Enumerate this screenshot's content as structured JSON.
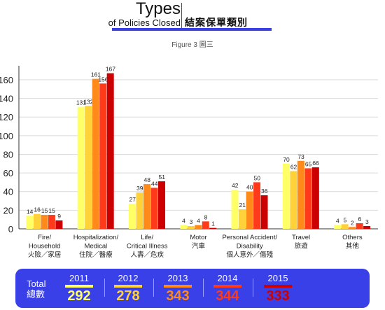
{
  "header": {
    "title_en_main": "Types",
    "title_en_sub": "of Policies Closed",
    "title_zh": "結案保單類別",
    "figure_label": "Figure 3  圖三"
  },
  "chart_data": {
    "type": "bar",
    "categories": [
      [
        "Fire/",
        "Household",
        "火險／家居"
      ],
      [
        "Hospitalization/",
        "Medical",
        "住院／醫療"
      ],
      [
        "Life/",
        "Critical Illness",
        "人壽／危疾"
      ],
      [
        "Motor",
        "汽車"
      ],
      [
        "Personal Accident/",
        "Disability",
        "個人意外／傷殘"
      ],
      [
        "Travel",
        "旅遊"
      ],
      [
        "Others",
        "其他"
      ]
    ],
    "series": [
      {
        "name": "2011",
        "values": [
          14,
          131,
          27,
          4,
          42,
          70,
          4
        ],
        "color": "#ffff66"
      },
      {
        "name": "2012",
        "values": [
          16,
          132,
          39,
          3,
          21,
          62,
          5
        ],
        "color": "#ffd23a"
      },
      {
        "name": "2013",
        "values": [
          15,
          161,
          48,
          4,
          40,
          73,
          2
        ],
        "color": "#ff8a1a"
      },
      {
        "name": "2014",
        "values": [
          15,
          156,
          44,
          8,
          50,
          65,
          6
        ],
        "color": "#ff3a1a"
      },
      {
        "name": "2015",
        "values": [
          9,
          167,
          51,
          1,
          36,
          66,
          3
        ],
        "color": "#cc0000"
      }
    ],
    "yticks": [
      0,
      20,
      40,
      60,
      80,
      100,
      120,
      140,
      160
    ],
    "ylim": [
      0,
      172
    ],
    "grid": true,
    "legend_position": "bottom"
  },
  "legend": {
    "total_en": "Total",
    "total_zh": "總數",
    "items": [
      {
        "year": "2011",
        "total": "292",
        "color": "#ffff66"
      },
      {
        "year": "2012",
        "total": "278",
        "color": "#ffd23a"
      },
      {
        "year": "2013",
        "total": "343",
        "color": "#ff8a1a"
      },
      {
        "year": "2014",
        "total": "344",
        "color": "#ff3a1a"
      },
      {
        "year": "2015",
        "total": "333",
        "color": "#cc0000"
      }
    ]
  }
}
